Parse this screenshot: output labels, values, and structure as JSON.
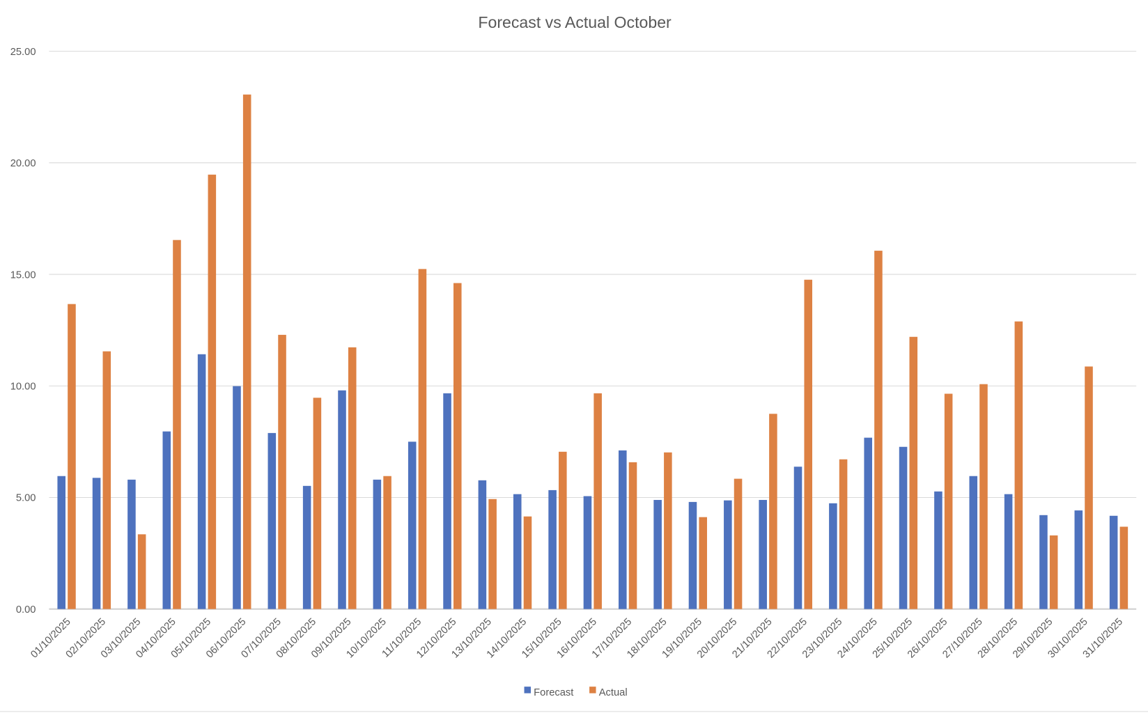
{
  "chart_data": {
    "type": "bar",
    "title": "Forecast vs Actual October",
    "xlabel": "",
    "ylabel": "",
    "ylim": [
      0,
      25
    ],
    "yticks": [
      "0.00",
      "5.00",
      "10.00",
      "15.00",
      "20.00",
      "25.00"
    ],
    "grid": true,
    "legend_position": "bottom",
    "categories": [
      "01/10/2025",
      "02/10/2025",
      "03/10/2025",
      "04/10/2025",
      "05/10/2025",
      "06/10/2025",
      "07/10/2025",
      "08/10/2025",
      "09/10/2025",
      "10/10/2025",
      "11/10/2025",
      "12/10/2025",
      "13/10/2025",
      "14/10/2025",
      "15/10/2025",
      "16/10/2025",
      "17/10/2025",
      "18/10/2025",
      "19/10/2025",
      "20/10/2025",
      "21/10/2025",
      "22/10/2025",
      "23/10/2025",
      "24/10/2025",
      "25/10/2025",
      "26/10/2025",
      "27/10/2025",
      "28/10/2025",
      "29/10/2025",
      "30/10/2025",
      "31/10/2025"
    ],
    "series": [
      {
        "name": "Forecast",
        "color": "#4E72BE",
        "values": [
          5.96,
          5.88,
          5.8,
          7.96,
          11.42,
          9.99,
          7.89,
          5.52,
          9.8,
          5.8,
          7.5,
          9.67,
          5.77,
          5.15,
          5.33,
          5.06,
          7.11,
          4.89,
          4.8,
          4.87,
          4.89,
          6.38,
          4.74,
          7.68,
          7.27,
          5.27,
          5.96,
          5.15,
          4.21,
          4.42,
          4.18
        ]
      },
      {
        "name": "Actual",
        "color": "#DD8143",
        "values": [
          13.67,
          11.55,
          3.35,
          16.54,
          19.47,
          23.06,
          12.29,
          9.47,
          11.73,
          5.96,
          15.24,
          14.61,
          4.93,
          4.15,
          7.05,
          9.67,
          6.58,
          7.02,
          4.12,
          5.84,
          8.75,
          14.76,
          6.71,
          16.06,
          12.2,
          9.65,
          10.08,
          12.89,
          3.3,
          10.87,
          3.69
        ]
      }
    ]
  }
}
